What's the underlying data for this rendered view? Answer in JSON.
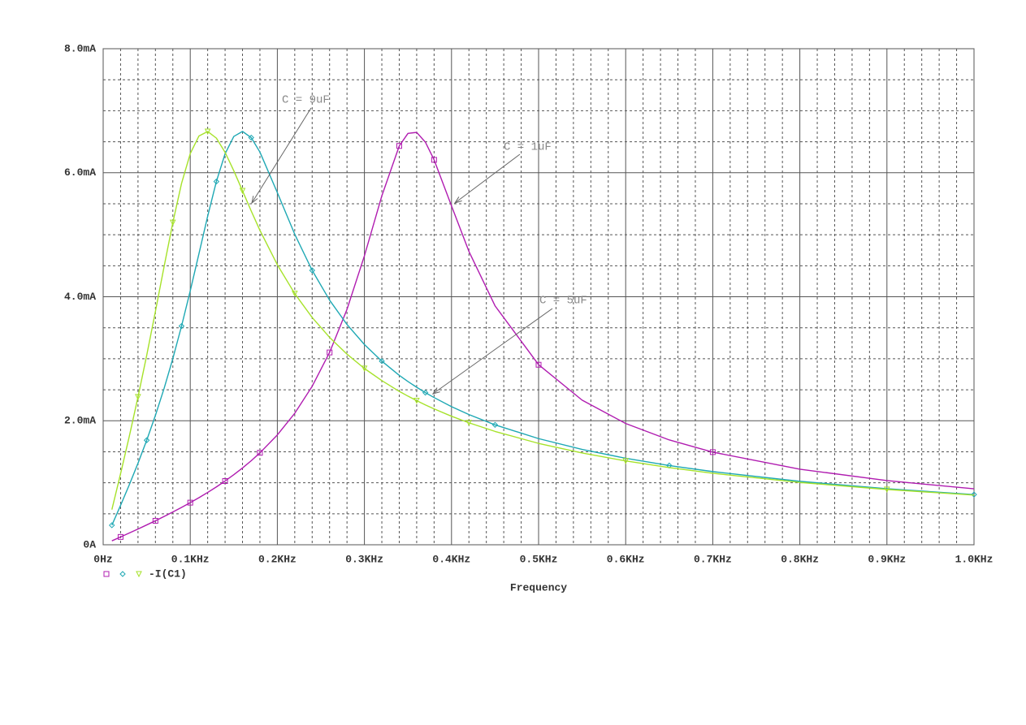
{
  "chart_data": {
    "type": "line",
    "x_label": "Frequency",
    "legend_label": "-I(C1)",
    "annotations": [
      "C = 9uF",
      "C = 1uF",
      "C = 5uF"
    ],
    "xlim": [
      0,
      1
    ],
    "ylim": [
      0,
      8
    ],
    "xticks": [
      {
        "value": 0,
        "label": "0Hz"
      },
      {
        "value": 0.1,
        "label": "0.1KHz"
      },
      {
        "value": 0.2,
        "label": "0.2KHz"
      },
      {
        "value": 0.3,
        "label": "0.3KHz"
      },
      {
        "value": 0.4,
        "label": "0.4KHz"
      },
      {
        "value": 0.5,
        "label": "0.5KHz"
      },
      {
        "value": 0.6,
        "label": "0.6KHz"
      },
      {
        "value": 0.7,
        "label": "0.7KHz"
      },
      {
        "value": 0.8,
        "label": "0.8KHz"
      },
      {
        "value": 0.9,
        "label": "0.9KHz"
      },
      {
        "value": 1,
        "label": "1.0KHz"
      }
    ],
    "yticks": [
      {
        "value": 0,
        "label": "0A"
      },
      {
        "value": 2,
        "label": "2.0mA"
      },
      {
        "value": 4,
        "label": "4.0mA"
      },
      {
        "value": 6,
        "label": "6.0mA"
      },
      {
        "value": 8,
        "label": "8.0mA"
      }
    ],
    "xminorticks": [
      0.02,
      0.04,
      0.06,
      0.08,
      0.12,
      0.14,
      0.16,
      0.18,
      0.22,
      0.24,
      0.26,
      0.28,
      0.32,
      0.34,
      0.36,
      0.38,
      0.42,
      0.44,
      0.46,
      0.48,
      0.52,
      0.54,
      0.56,
      0.58,
      0.62,
      0.64,
      0.66,
      0.68,
      0.72,
      0.74,
      0.76,
      0.78,
      0.82,
      0.84,
      0.86,
      0.88,
      0.92,
      0.94,
      0.96,
      0.98
    ],
    "yminorticks": [
      0.5,
      1,
      1.5,
      2.5,
      3,
      3.5,
      4.5,
      5,
      5.5,
      6.5,
      7,
      7.5
    ],
    "grid": true,
    "x": [
      0.01,
      0.02,
      0.03,
      0.04,
      0.05,
      0.06,
      0.07,
      0.08,
      0.09,
      0.1,
      0.11,
      0.12,
      0.13,
      0.14,
      0.15,
      0.16,
      0.17,
      0.18,
      0.2,
      0.22,
      0.24,
      0.26,
      0.28,
      0.3,
      0.32,
      0.34,
      0.35,
      0.36,
      0.37,
      0.38,
      0.4,
      0.42,
      0.45,
      0.5,
      0.55,
      0.6,
      0.65,
      0.7,
      0.8,
      0.9,
      1.0
    ],
    "series": [
      {
        "color": "#b01cb0",
        "marker": "square",
        "values": [
          0.063,
          0.126,
          0.19,
          0.254,
          0.32,
          0.387,
          0.456,
          0.528,
          0.602,
          0.679,
          0.759,
          0.844,
          0.933,
          1.028,
          1.13,
          1.238,
          1.355,
          1.482,
          1.771,
          2.121,
          2.555,
          3.102,
          3.797,
          4.66,
          5.627,
          6.432,
          6.634,
          6.651,
          6.493,
          6.208,
          5.465,
          4.731,
          3.853,
          2.904,
          2.332,
          1.956,
          1.691,
          1.494,
          1.219,
          1.035,
          0.902
        ]
      },
      {
        "color": "#1ea8b4",
        "marker": "diamond",
        "values": [
          0.315,
          0.636,
          0.967,
          1.315,
          1.686,
          2.087,
          2.523,
          3.002,
          3.527,
          4.096,
          4.695,
          5.299,
          5.858,
          6.306,
          6.585,
          6.666,
          6.566,
          6.333,
          5.679,
          5.008,
          4.425,
          3.945,
          3.552,
          3.229,
          2.961,
          2.733,
          2.633,
          2.54,
          2.453,
          2.374,
          2.228,
          2.1,
          1.934,
          1.712,
          1.537,
          1.395,
          1.278,
          1.18,
          1.023,
          0.904,
          0.81
        ]
      },
      {
        "color": "#a6e22a",
        "marker": "triangle",
        "values": [
          0.567,
          1.147,
          1.749,
          2.384,
          3.055,
          3.764,
          4.489,
          5.197,
          5.827,
          6.309,
          6.593,
          6.665,
          6.558,
          6.329,
          6.032,
          5.708,
          5.383,
          5.071,
          4.516,
          4.05,
          3.665,
          3.344,
          3.074,
          2.843,
          2.647,
          2.474,
          2.397,
          2.324,
          2.256,
          2.191,
          2.073,
          1.967,
          1.828,
          1.635,
          1.48,
          1.352,
          1.244,
          1.153,
          1.005,
          0.892,
          0.801
        ]
      }
    ]
  }
}
